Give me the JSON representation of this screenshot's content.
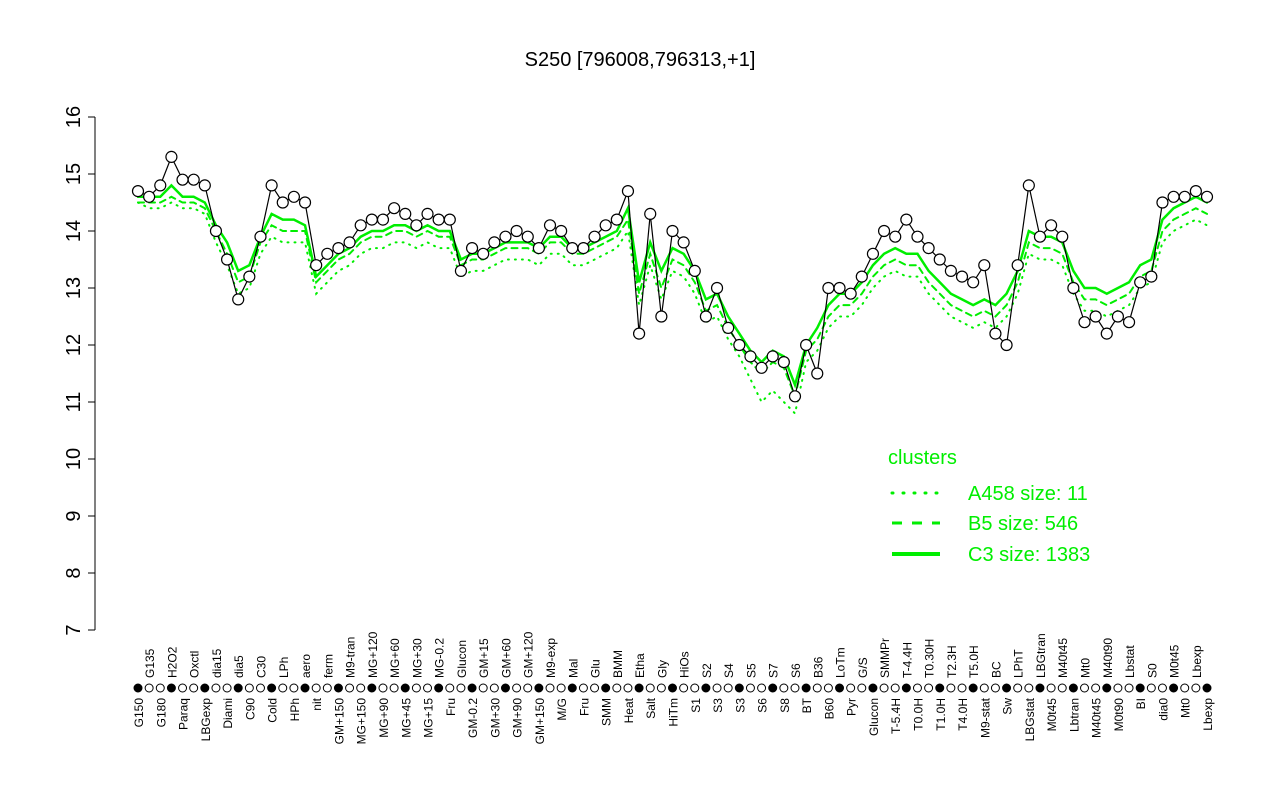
{
  "chart_data": {
    "type": "line",
    "title": "S250 [796008,796313,+1]",
    "xlabel": "",
    "ylabel": "",
    "ylim": [
      7,
      16
    ],
    "yticks": [
      7,
      8,
      9,
      10,
      11,
      12,
      13,
      14,
      15,
      16
    ],
    "grid": false,
    "categories": [
      "G150",
      "G135",
      "G180",
      "H2O2",
      "Paraq",
      "Oxctl",
      "LBGexp",
      "dia15",
      "Diami",
      "dia5",
      "C90",
      "C30",
      "Cold",
      "LPh",
      "HPh",
      "aero",
      "nit",
      "ferm",
      "GM+150",
      "M9-tran",
      "MG+150",
      "MG+120",
      "MG+90",
      "MG+60",
      "MG+45",
      "MG+30",
      "MG+15",
      "MG-0.2",
      "Fru",
      "Glucon",
      "GM-0.2",
      "GM+15",
      "GM+30",
      "GM+60",
      "GM+90",
      "GM+120",
      "GM+150",
      "M9-exp",
      "M/G",
      "Mal",
      "Fru",
      "Glu",
      "SMM",
      "BMM",
      "Heat",
      "Etha",
      "Salt",
      "Gly",
      "HiTm",
      "HiOs",
      "S1",
      "S2",
      "S3",
      "S4",
      "S3",
      "S5",
      "S6",
      "S7",
      "S8",
      "S6",
      "BT",
      "B36",
      "B60",
      "LoTm",
      "Pyr",
      "G/S",
      "Glucon",
      "SMMPr",
      "T-5.4H",
      "T-4.4H",
      "T0.0H",
      "T0.30H",
      "T1.0H",
      "T2.3H",
      "T4.0H",
      "T5.0H",
      "M9-stat",
      "BC",
      "Sw",
      "LPhT",
      "LBGstat",
      "LBGtran",
      "M0t45",
      "M40t45",
      "Lbtran",
      "Mt0",
      "M40t45",
      "M40t90",
      "M0t90",
      "Lbstat",
      "BI",
      "S0",
      "dia0",
      "M0t45",
      "Mt0",
      "Lbexp",
      "Lbexp"
    ],
    "series": [
      {
        "name": "expression",
        "values": [
          14.7,
          14.6,
          14.8,
          15.3,
          14.9,
          14.9,
          14.8,
          14.0,
          13.5,
          12.8,
          13.2,
          13.9,
          14.8,
          14.5,
          14.6,
          14.5,
          13.4,
          13.6,
          13.7,
          13.8,
          14.1,
          14.2,
          14.2,
          14.4,
          14.3,
          14.1,
          14.3,
          14.2,
          14.2,
          13.3,
          13.7,
          13.6,
          13.8,
          13.9,
          14.0,
          13.9,
          13.7,
          14.1,
          14.0,
          13.7,
          13.7,
          13.9,
          14.1,
          14.2,
          14.7,
          12.2,
          14.3,
          12.5,
          14.0,
          13.8,
          13.3,
          12.5,
          13.0,
          12.3,
          12.0,
          11.8,
          11.6,
          11.8,
          11.7,
          11.1,
          12.0,
          11.5,
          13.0,
          13.0,
          12.9,
          13.2,
          13.6,
          14.0,
          13.9,
          14.2,
          13.9,
          13.7,
          13.5,
          13.3,
          13.2,
          13.1,
          13.4,
          12.2,
          12.0,
          13.4,
          14.8,
          13.9,
          14.1,
          13.9,
          13.0,
          12.4,
          12.5,
          12.2,
          12.5,
          12.4,
          13.1,
          13.2,
          14.5,
          14.6,
          14.6,
          14.7,
          14.6
        ]
      },
      {
        "name": "C3 size: 1383",
        "style": "solid",
        "values": [
          14.6,
          14.6,
          14.6,
          14.8,
          14.6,
          14.6,
          14.5,
          14.1,
          13.8,
          13.3,
          13.4,
          13.9,
          14.3,
          14.2,
          14.2,
          14.1,
          13.2,
          13.4,
          13.6,
          13.7,
          13.9,
          14.0,
          14.0,
          14.1,
          14.1,
          14.0,
          14.1,
          14.0,
          14.0,
          13.5,
          13.6,
          13.6,
          13.7,
          13.8,
          13.8,
          13.8,
          13.7,
          13.9,
          13.9,
          13.7,
          13.7,
          13.8,
          13.9,
          14.0,
          14.4,
          13.1,
          13.8,
          13.3,
          13.7,
          13.6,
          13.3,
          12.8,
          12.9,
          12.5,
          12.2,
          11.9,
          11.7,
          11.9,
          11.8,
          11.3,
          12.0,
          12.3,
          12.7,
          12.9,
          12.9,
          13.1,
          13.4,
          13.6,
          13.7,
          13.6,
          13.6,
          13.3,
          13.1,
          12.9,
          12.8,
          12.7,
          12.8,
          12.7,
          12.9,
          13.3,
          14.0,
          13.9,
          13.9,
          13.8,
          13.3,
          13.0,
          13.0,
          12.9,
          13.0,
          13.1,
          13.4,
          13.5,
          14.2,
          14.4,
          14.5,
          14.6,
          14.5
        ]
      },
      {
        "name": "B5 size: 546",
        "style": "dashed",
        "values": [
          14.5,
          14.5,
          14.5,
          14.6,
          14.5,
          14.5,
          14.4,
          14.0,
          13.6,
          13.1,
          13.2,
          13.8,
          14.1,
          14.0,
          14.0,
          14.0,
          13.1,
          13.3,
          13.5,
          13.6,
          13.8,
          13.9,
          13.9,
          14.0,
          14.0,
          13.9,
          14.0,
          13.9,
          13.9,
          13.4,
          13.5,
          13.5,
          13.6,
          13.7,
          13.7,
          13.7,
          13.6,
          13.8,
          13.8,
          13.6,
          13.6,
          13.7,
          13.8,
          13.9,
          14.2,
          12.9,
          13.6,
          13.0,
          13.5,
          13.4,
          13.1,
          12.6,
          12.7,
          12.3,
          12.0,
          11.7,
          11.5,
          11.7,
          11.6,
          11.1,
          11.9,
          12.1,
          12.5,
          12.7,
          12.7,
          12.9,
          13.2,
          13.4,
          13.5,
          13.4,
          13.4,
          13.1,
          12.9,
          12.7,
          12.6,
          12.5,
          12.6,
          12.5,
          12.7,
          13.1,
          13.8,
          13.7,
          13.7,
          13.6,
          13.1,
          12.8,
          12.8,
          12.7,
          12.8,
          12.9,
          13.2,
          13.3,
          14.0,
          14.2,
          14.3,
          14.4,
          14.3
        ]
      },
      {
        "name": "A458 size: 11",
        "style": "dotted",
        "values": [
          14.5,
          14.4,
          14.4,
          14.5,
          14.4,
          14.4,
          14.3,
          13.8,
          13.4,
          12.9,
          13.0,
          13.6,
          13.9,
          13.8,
          13.8,
          13.8,
          12.9,
          13.1,
          13.3,
          13.4,
          13.6,
          13.7,
          13.7,
          13.8,
          13.8,
          13.7,
          13.8,
          13.7,
          13.7,
          13.2,
          13.3,
          13.3,
          13.4,
          13.5,
          13.5,
          13.5,
          13.4,
          13.6,
          13.6,
          13.4,
          13.4,
          13.5,
          13.6,
          13.7,
          14.0,
          12.7,
          13.4,
          12.8,
          13.3,
          13.2,
          12.9,
          12.4,
          12.5,
          12.1,
          11.8,
          11.4,
          11.0,
          11.2,
          11.0,
          10.8,
          11.7,
          11.9,
          12.3,
          12.5,
          12.5,
          12.7,
          13.0,
          13.2,
          13.3,
          13.2,
          13.2,
          12.9,
          12.7,
          12.5,
          12.4,
          12.3,
          12.4,
          12.3,
          12.5,
          12.9,
          13.6,
          13.5,
          13.5,
          13.4,
          12.9,
          12.6,
          12.6,
          12.5,
          12.6,
          12.7,
          13.0,
          13.1,
          13.8,
          14.0,
          14.1,
          14.2,
          14.1
        ]
      }
    ],
    "legend": {
      "title": "clusters",
      "placement": "right",
      "entries": [
        "A458 size: 11",
        "B5 size: 546",
        "C3 size: 1383"
      ]
    },
    "colors": {
      "cluster": "#00ee00",
      "points": "#000000"
    }
  }
}
